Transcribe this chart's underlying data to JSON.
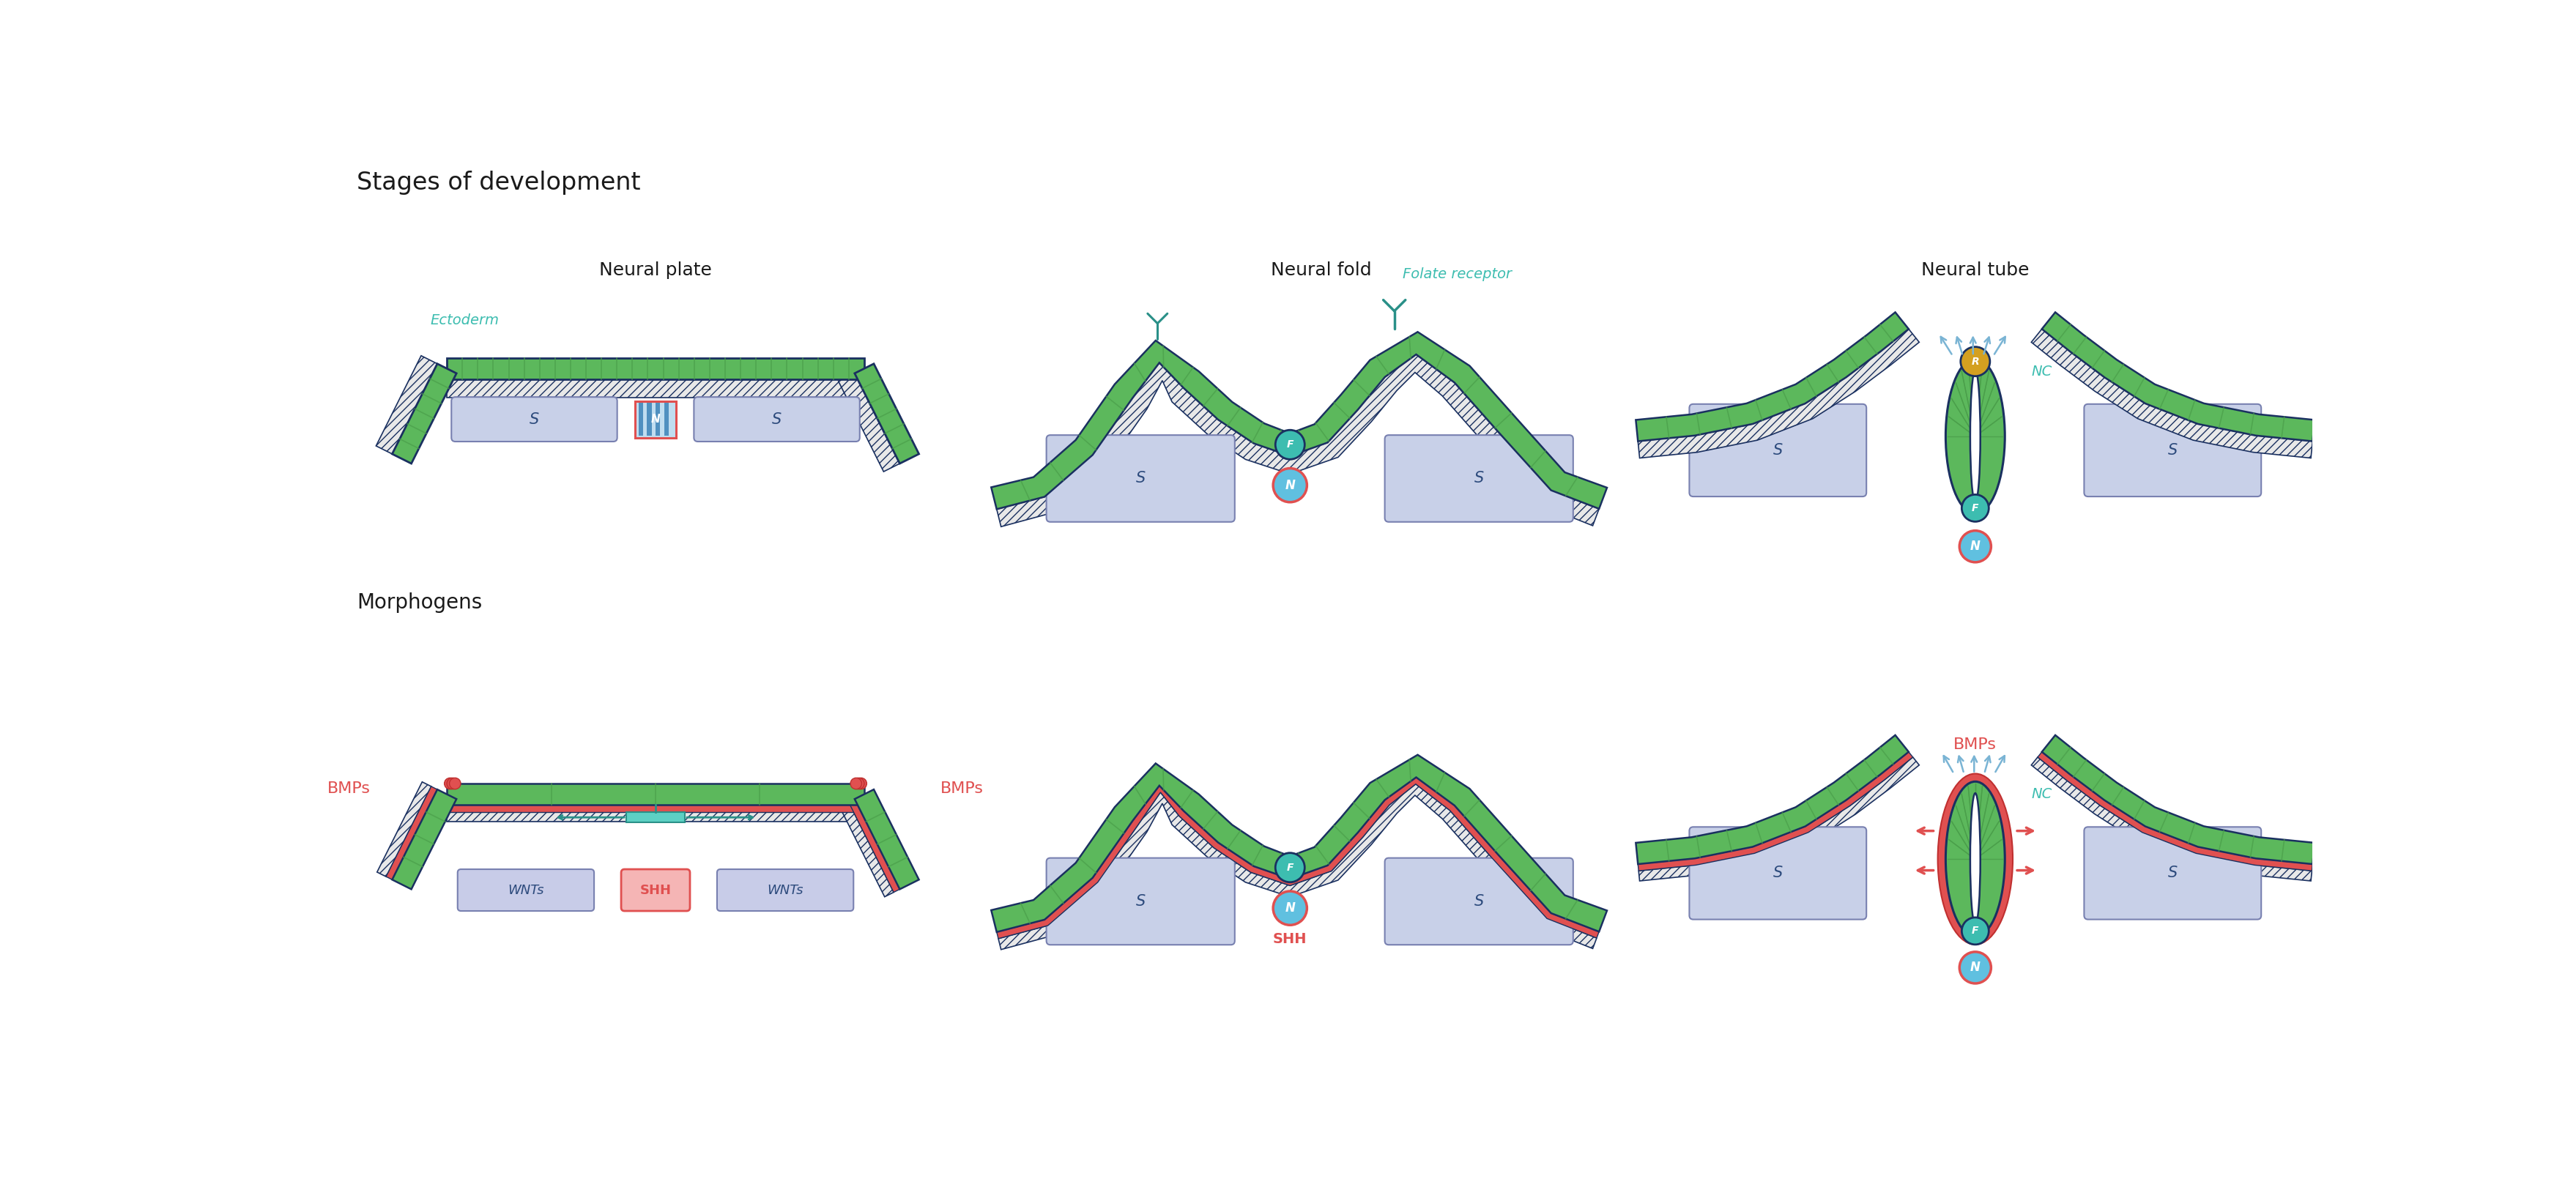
{
  "title": "Stages of development",
  "subtitle_morphogens": "Morphogens",
  "col_titles_top": [
    "Neural plate",
    "Neural fold",
    "Neural tube"
  ],
  "bg_color": "#ffffff",
  "green_color": "#5cb85c",
  "green_dark": "#4a9e4a",
  "green_stripe": "#7dcc7d",
  "blue_dark": "#2c4a7c",
  "blue_navy": "#1a3060",
  "blue_light": "#7ab4d4",
  "blue_arrow": "#5aaacc",
  "teal": "#3dbdb0",
  "teal_dark": "#2a9088",
  "teal_light": "#5dd0c4",
  "red": "#e05050",
  "red_dark": "#c03030",
  "orange_gold": "#d4a020",
  "lavender": "#c8cce8",
  "lavender_border": "#7880b0",
  "somite_fill": "#c8d0e8",
  "somite_border": "#7880b0",
  "notochord_bg": "#60c0e0",
  "notochord_border": "#e05050",
  "hatch_fill": "#e8e8e8",
  "white": "#ffffff",
  "text_black": "#1a1a1a",
  "text_teal": "#2a9088",
  "text_red": "#e05050",
  "text_blue_dark": "#2c4a7c",
  "text_gray": "#606070"
}
